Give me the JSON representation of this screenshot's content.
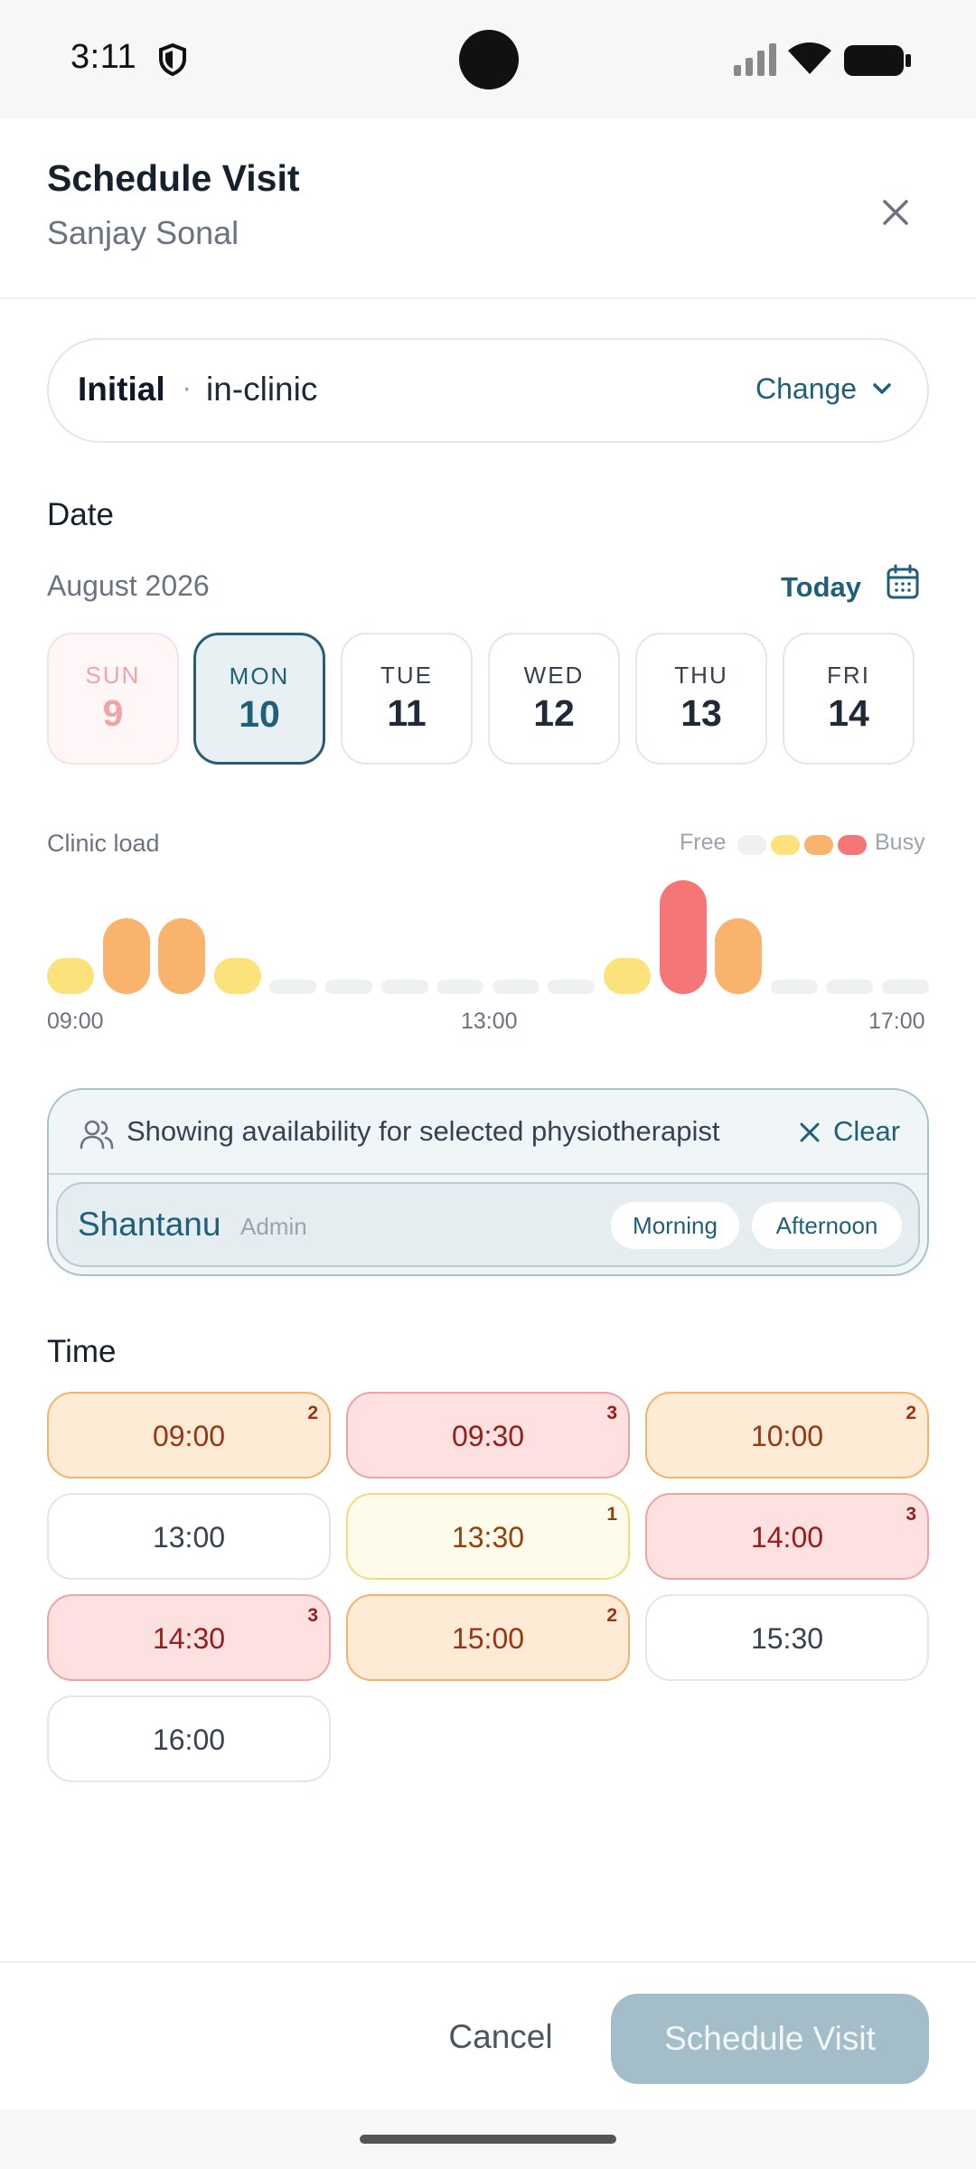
{
  "status_bar": {
    "time": "3:11",
    "icons": [
      "shield-icon",
      "signal-icon",
      "wifi-icon",
      "battery-icon"
    ]
  },
  "header": {
    "title": "Schedule Visit",
    "patient": "Sanjay Sonal",
    "close_icon": "close-icon"
  },
  "visit_type": {
    "type": "Initial",
    "separator": "·",
    "mode": "in-clinic",
    "change_label": "Change"
  },
  "date_section": {
    "label": "Date",
    "month": "August 2026",
    "today_label": "Today",
    "days": [
      {
        "name": "SUN",
        "date": "9",
        "state": "unavailable"
      },
      {
        "name": "MON",
        "date": "10",
        "state": "selected"
      },
      {
        "name": "TUE",
        "date": "11",
        "state": "normal"
      },
      {
        "name": "WED",
        "date": "12",
        "state": "normal"
      },
      {
        "name": "THU",
        "date": "13",
        "state": "normal"
      },
      {
        "name": "FRI",
        "date": "14",
        "state": "normal"
      }
    ]
  },
  "clinic_load": {
    "label": "Clinic load",
    "legend_free": "Free",
    "legend_busy": "Busy",
    "legend_colors": [
      "#eef0f2",
      "#fbe27a",
      "#f9b36c",
      "#f47676"
    ],
    "axis_labels": [
      "09:00",
      "13:00",
      "17:00"
    ],
    "levels": [
      1,
      2,
      2,
      1,
      0,
      0,
      0,
      0,
      0,
      0,
      1,
      3,
      2,
      0,
      0,
      0
    ],
    "level_colors": [
      "#eef0f2",
      "#fbe27a",
      "#f9b36c",
      "#f47676"
    ]
  },
  "physio_filter": {
    "message": "Showing availability for selected physiotherapist",
    "clear_label": "Clear",
    "name": "Shantanu",
    "role": "Admin",
    "chips": [
      "Morning",
      "Afternoon"
    ]
  },
  "time_section": {
    "label": "Time",
    "slots": [
      {
        "time": "09:00",
        "count": "2",
        "level": "l2"
      },
      {
        "time": "09:30",
        "count": "3",
        "level": "l3"
      },
      {
        "time": "10:00",
        "count": "2",
        "level": "l2"
      },
      {
        "time": "13:00",
        "count": "",
        "level": "l0"
      },
      {
        "time": "13:30",
        "count": "1",
        "level": "l1"
      },
      {
        "time": "14:00",
        "count": "3",
        "level": "l3"
      },
      {
        "time": "14:30",
        "count": "3",
        "level": "l3"
      },
      {
        "time": "15:00",
        "count": "2",
        "level": "l2"
      },
      {
        "time": "15:30",
        "count": "",
        "level": "l0"
      },
      {
        "time": "16:00",
        "count": "",
        "level": "l0"
      }
    ]
  },
  "footer": {
    "cancel_label": "Cancel",
    "submit_label": "Schedule Visit"
  }
}
